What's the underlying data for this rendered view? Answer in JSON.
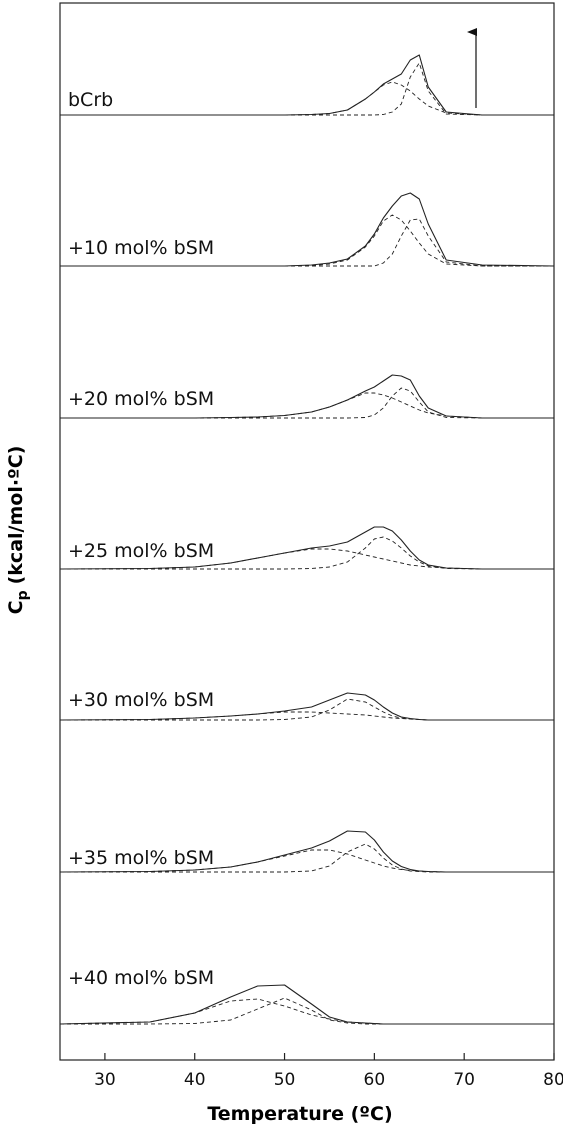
{
  "chart_data": {
    "type": "line",
    "x_label": "Temperature (ºC)",
    "y_label": {
      "main": "C",
      "sub": "p",
      "unit": "(kcal/mol·ºC)"
    },
    "xlim": [
      25,
      80
    ],
    "xticks": [
      30,
      40,
      50,
      60,
      70,
      80
    ],
    "color": "#222222",
    "component_dash": "4 3",
    "x": [
      25,
      35,
      40,
      44,
      47,
      50,
      53,
      55,
      57,
      59,
      60,
      61,
      62,
      63,
      64,
      65,
      66,
      68,
      72,
      80
    ],
    "series": [
      {
        "name": "bCrb",
        "values": [
          0,
          0,
          0,
          0,
          0,
          0,
          0.5,
          1.5,
          5,
          16,
          23,
          31,
          36,
          41,
          55,
          60,
          28,
          3,
          0,
          0
        ],
        "components": [
          [
            0,
            0,
            0,
            0,
            0,
            0,
            0.5,
            1.5,
            5,
            16,
            23,
            30,
            33,
            30,
            24,
            16,
            9,
            2,
            0,
            0
          ],
          [
            0,
            0,
            0,
            0,
            0,
            0,
            0,
            0,
            0,
            0,
            0,
            0.5,
            3,
            11,
            38,
            52,
            24,
            1,
            0,
            0
          ]
        ]
      },
      {
        "name": "+10 mol% bSM",
        "values": [
          0,
          0,
          0,
          0,
          0,
          0,
          1,
          3,
          7,
          20,
          32,
          48,
          60,
          70,
          73,
          67,
          42,
          6,
          1,
          0
        ],
        "components": [
          [
            0,
            0,
            0,
            0,
            0,
            0,
            0.5,
            2,
            6,
            19,
            30,
            45,
            51,
            46,
            35,
            23,
            12,
            2,
            0,
            0
          ],
          [
            0,
            0,
            0,
            0,
            0,
            0,
            0,
            0,
            0,
            0,
            0,
            3,
            12,
            30,
            46,
            47,
            30,
            4,
            0,
            0
          ]
        ]
      },
      {
        "name": "+20 mol% bSM",
        "values": [
          0,
          0,
          0,
          0.5,
          1,
          2.5,
          6,
          11,
          18,
          27,
          31,
          37,
          43,
          42,
          38,
          22,
          10,
          2,
          0,
          0
        ],
        "components": [
          [
            0,
            0,
            0,
            0.5,
            1,
            2.5,
            6,
            11,
            18,
            25,
            25,
            23,
            20,
            16,
            12,
            8,
            5,
            2,
            0,
            0
          ],
          [
            0,
            0,
            0,
            0,
            0,
            0,
            0,
            0,
            0,
            0.5,
            3,
            10,
            22,
            30,
            27,
            16,
            6,
            0.5,
            0,
            0
          ]
        ]
      },
      {
        "name": "+25 mol% bSM",
        "values": [
          0,
          0.5,
          2,
          6,
          11,
          16,
          21,
          23,
          27,
          37,
          42,
          42,
          38,
          29,
          18,
          9,
          4,
          1,
          0,
          0
        ],
        "components": [
          [
            0,
            0.5,
            2,
            6,
            11,
            16,
            20,
            20,
            18,
            14,
            12,
            10,
            8,
            6,
            4,
            3,
            2,
            1,
            0,
            0
          ],
          [
            0,
            0,
            0,
            0,
            0,
            0,
            0.5,
            2,
            7,
            21,
            30,
            32,
            28,
            21,
            13,
            7,
            3,
            0.5,
            0,
            0
          ]
        ]
      },
      {
        "name": "+30 mol% bSM",
        "values": [
          0,
          0.5,
          2,
          4,
          6,
          9,
          13,
          20,
          27,
          25,
          20,
          13,
          7,
          3,
          1.5,
          0.5,
          0,
          0,
          0,
          0
        ],
        "components": [
          [
            0,
            0.5,
            2,
            4,
            6,
            8,
            8,
            7,
            6,
            5,
            4,
            3,
            2,
            1.5,
            1,
            0.5,
            0,
            0,
            0,
            0
          ],
          [
            0,
            0,
            0,
            0,
            0,
            0.5,
            3,
            10,
            21,
            18,
            13,
            8,
            4,
            2,
            1,
            0.5,
            0,
            0,
            0,
            0
          ]
        ]
      },
      {
        "name": "+35 mol% bSM",
        "values": [
          0,
          0.5,
          2,
          5,
          10,
          17,
          24,
          31,
          41,
          40,
          32,
          20,
          11,
          5.5,
          2.5,
          1,
          0.5,
          0,
          0,
          0
        ],
        "components": [
          [
            0,
            0.5,
            2,
            5,
            10,
            16,
            22,
            22,
            18,
            12,
            9,
            6,
            4,
            2.5,
            1.5,
            1,
            0.5,
            0,
            0,
            0
          ],
          [
            0,
            0,
            0,
            0,
            0,
            0,
            1,
            6,
            20,
            28,
            23,
            14,
            7,
            3,
            1,
            0.5,
            0,
            0,
            0,
            0
          ]
        ]
      },
      {
        "name": "+40 mol% bSM",
        "values": [
          0,
          2,
          11,
          27,
          38,
          39,
          20,
          7,
          2,
          1,
          0.5,
          0,
          0,
          0,
          0,
          0,
          0,
          0,
          0,
          0
        ],
        "components": [
          [
            0,
            2,
            11,
            23,
            25,
            18,
            9,
            5,
            2,
            1,
            0.5,
            0,
            0,
            0,
            0,
            0,
            0,
            0,
            0,
            0
          ],
          [
            0,
            0,
            0.5,
            4,
            15,
            26,
            14,
            4,
            1,
            0,
            0,
            0,
            0,
            0,
            0,
            0,
            0,
            0,
            0,
            0
          ]
        ]
      }
    ]
  }
}
